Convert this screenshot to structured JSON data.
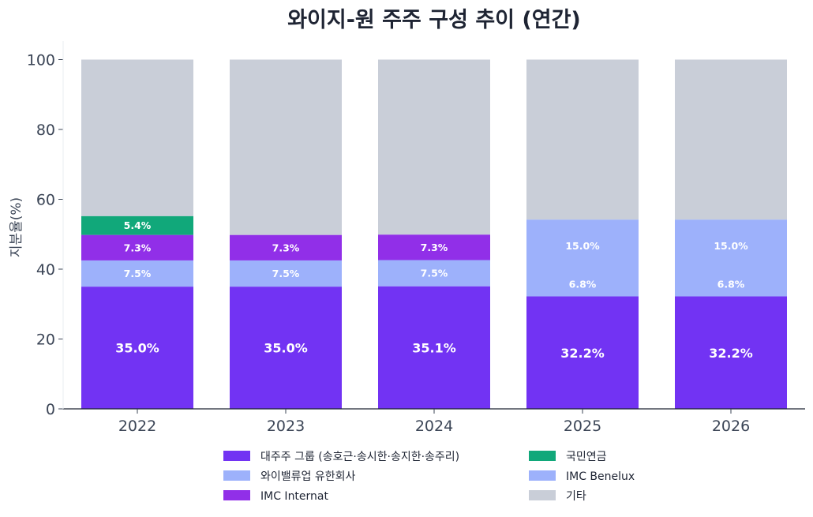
{
  "chart_data": {
    "type": "bar",
    "stacked": true,
    "title": "와이지-원 주주 구성 추이 (연간)",
    "xlabel": "",
    "ylabel": "지분율(%)",
    "ylim": [
      0,
      105
    ],
    "yticks": [
      "0",
      "20",
      "40",
      "60",
      "80",
      "100"
    ],
    "categories": [
      "2022",
      "2023",
      "2024",
      "2025",
      "2026"
    ],
    "grid": false,
    "legend_position": "bottom",
    "series": [
      {
        "name": "대주주 그룹 (송호근·송시한·송지한·송주리)",
        "color": "#7233f3",
        "values": [
          35.0,
          35.0,
          35.1,
          32.2,
          32.2
        ],
        "labels": [
          "35.0%",
          "35.0%",
          "35.1%",
          "32.2%",
          "32.2%"
        ]
      },
      {
        "name": "와이밸류업 유한회사",
        "color": "#9db1fb",
        "values": [
          7.5,
          7.5,
          7.5,
          0,
          0
        ],
        "labels": [
          "7.5%",
          "7.5%",
          "7.5%",
          "",
          ""
        ]
      },
      {
        "name": "IMC Internat",
        "color": "#912fe8",
        "values": [
          7.3,
          7.3,
          7.3,
          0,
          0
        ],
        "labels": [
          "7.3%",
          "7.3%",
          "7.3%",
          "",
          ""
        ]
      },
      {
        "name": "국민연금",
        "color": "#11a87a",
        "values": [
          5.4,
          0,
          0,
          0,
          0
        ],
        "labels": [
          "5.4%",
          "",
          "",
          "",
          ""
        ]
      },
      {
        "name": "IMC Benelux",
        "color": "#9db1fb",
        "values": [
          0,
          0,
          0,
          22.0,
          22.0
        ],
        "labels": [
          "",
          "",
          "",
          "",
          ""
        ],
        "printed_labels": [
          "",
          "",
          "",
          "15.0%",
          "15.0%"
        ],
        "extra_printed_labels": [
          "",
          "",
          "",
          "6.8%",
          "6.8%"
        ]
      },
      {
        "name": "기타",
        "color": "#c9ced8",
        "values": [
          44.8,
          50.2,
          50.1,
          45.8,
          45.8
        ],
        "labels": [
          "",
          "",
          "",
          "",
          ""
        ]
      }
    ]
  }
}
